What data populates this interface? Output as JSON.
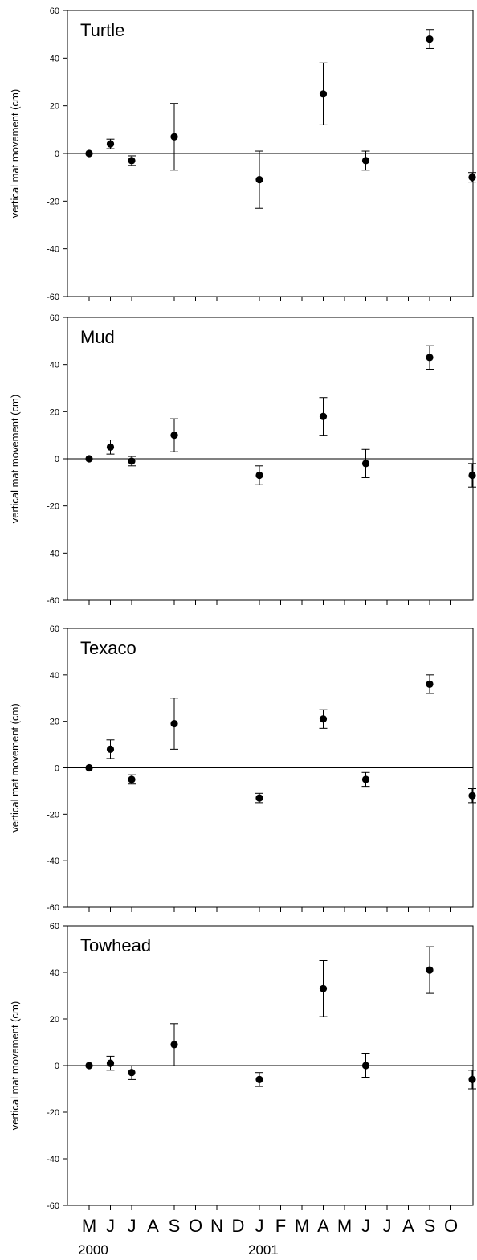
{
  "chart_data": [
    {
      "type": "scatter",
      "title": "Turtle",
      "ylabel": "vertical mat movement (cm)",
      "ylim": [
        -60,
        60
      ],
      "yticks": [
        60,
        40,
        20,
        0,
        -20,
        -40,
        -60
      ],
      "grid": false,
      "x_index": [
        0,
        1,
        2,
        4,
        8,
        11,
        13,
        16,
        18
      ],
      "values": [
        0,
        4,
        -3,
        7,
        -11,
        25,
        -3,
        48,
        -10
      ],
      "error": [
        0,
        2,
        2,
        14,
        12,
        13,
        4,
        4,
        2
      ]
    },
    {
      "type": "scatter",
      "title": "Mud",
      "ylabel": "vertical mat movement (cm)",
      "ylim": [
        -60,
        60
      ],
      "yticks": [
        60,
        40,
        20,
        0,
        -20,
        -40,
        -60
      ],
      "grid": false,
      "x_index": [
        0,
        1,
        2,
        4,
        8,
        11,
        13,
        16,
        18
      ],
      "values": [
        0,
        5,
        -1,
        10,
        -7,
        18,
        -2,
        43,
        -7
      ],
      "error": [
        0,
        3,
        2,
        7,
        4,
        8,
        6,
        5,
        5
      ]
    },
    {
      "type": "scatter",
      "title": "Texaco",
      "ylabel": "vertical mat movement (cm)",
      "ylim": [
        -60,
        60
      ],
      "yticks": [
        60,
        40,
        20,
        0,
        -20,
        -40,
        -60
      ],
      "grid": false,
      "x_index": [
        0,
        1,
        2,
        4,
        8,
        11,
        13,
        16,
        18
      ],
      "values": [
        0,
        8,
        -5,
        19,
        -13,
        21,
        -5,
        36,
        -12
      ],
      "error": [
        0,
        4,
        2,
        11,
        2,
        4,
        3,
        4,
        3
      ]
    },
    {
      "type": "scatter",
      "title": "Towhead",
      "ylabel": "vertical mat movement (cm)",
      "ylim": [
        -60,
        60
      ],
      "yticks": [
        60,
        40,
        20,
        0,
        -20,
        -40,
        -60
      ],
      "grid": false,
      "x_index": [
        0,
        1,
        2,
        4,
        8,
        11,
        13,
        16,
        18
      ],
      "values": [
        0,
        1,
        -3,
        9,
        -6,
        33,
        0,
        41,
        -6
      ],
      "error": [
        0,
        3,
        3,
        9,
        3,
        12,
        5,
        10,
        4
      ]
    }
  ],
  "x_axis": {
    "months": [
      "M",
      "J",
      "J",
      "A",
      "S",
      "O",
      "N",
      "D",
      "J",
      "F",
      "M",
      "A",
      "M",
      "J",
      "J",
      "A",
      "S",
      "O"
    ],
    "years": [
      {
        "label": "2000",
        "index": 0
      },
      {
        "label": "2001",
        "index": 8
      }
    ]
  }
}
